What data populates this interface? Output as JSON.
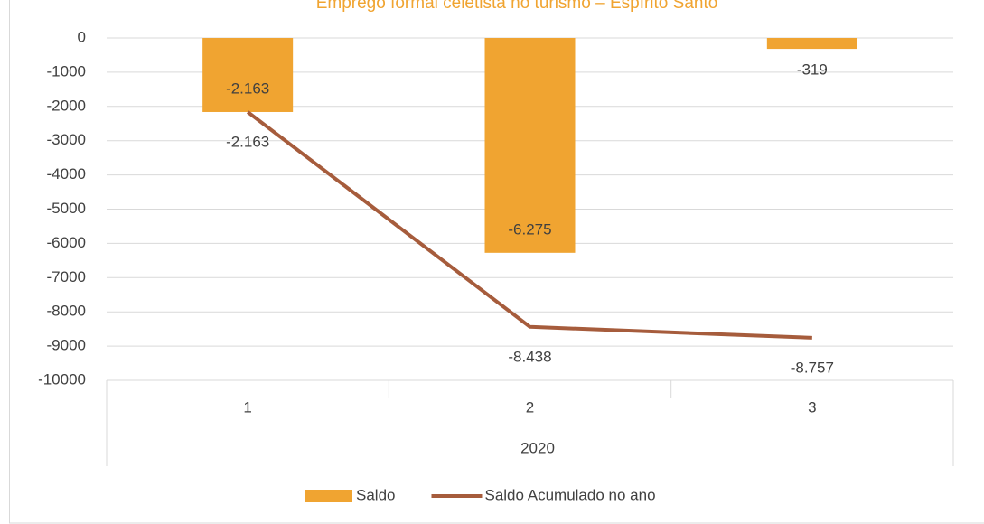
{
  "chart_data": {
    "type": "bar",
    "title": "Emprego formal celetista no turismo – Espírito Santo",
    "categories": [
      "1",
      "2",
      "3"
    ],
    "group_label": "2020",
    "series": [
      {
        "name": "Saldo",
        "type": "bar",
        "color": "#f0a431",
        "values": [
          -2163,
          -6275,
          -319
        ],
        "value_labels": [
          "-2.163",
          "-6.275",
          "-319"
        ]
      },
      {
        "name": "Saldo Acumulado no ano",
        "type": "line",
        "color": "#a65c3c",
        "values": [
          -2163,
          -8438,
          -8757
        ],
        "value_labels": [
          "-2.163",
          "-8.438",
          "-8.757"
        ]
      }
    ],
    "ylim": [
      -10000,
      0
    ],
    "yticks": [
      0,
      -1000,
      -2000,
      -3000,
      -4000,
      -5000,
      -6000,
      -7000,
      -8000,
      -9000,
      -10000
    ],
    "grid": true,
    "legend": "bottom"
  }
}
